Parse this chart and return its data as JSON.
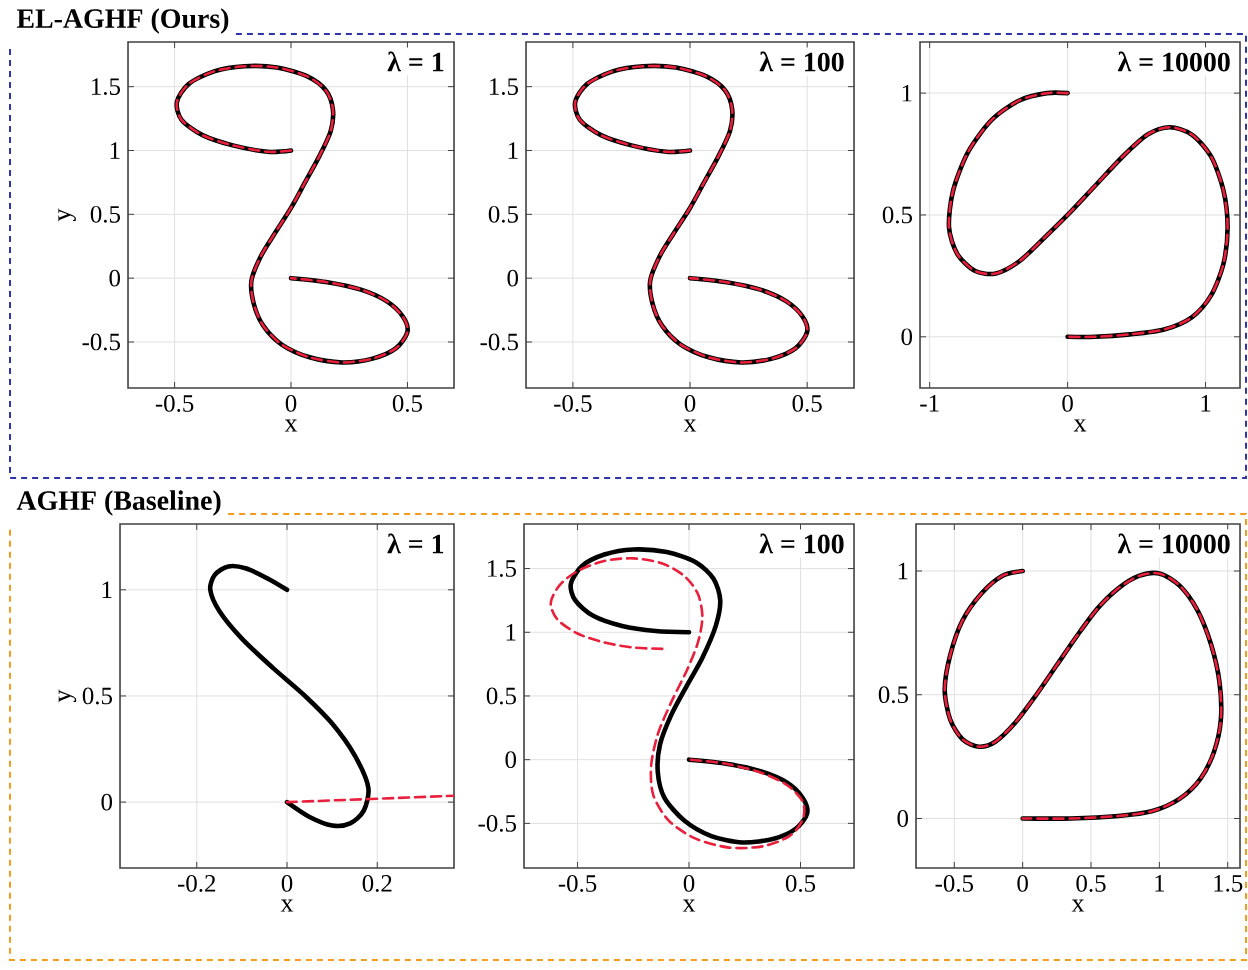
{
  "chart_data": [
    {
      "type": "line",
      "title": "λ = 1",
      "xlabel": "x",
      "ylabel": "y",
      "annotations": [
        "EL-AGHF (Ours)"
      ],
      "xlim": [
        -0.7,
        0.7
      ],
      "ylim": [
        -0.86,
        1.85
      ],
      "xticks": [
        -0.5,
        0,
        0.5
      ],
      "yticks": [
        -0.5,
        0,
        0.5,
        1,
        1.5
      ],
      "grid": true,
      "series": [
        {
          "color": "#000000",
          "line_style": "solid",
          "x": [
            0,
            -0.1,
            -0.25,
            -0.38,
            -0.47,
            -0.49,
            -0.44,
            -0.33,
            -0.2,
            -0.06,
            0.07,
            0.15,
            0.18,
            0.17,
            0.12,
            0.06,
            0.0,
            -0.07,
            -0.13,
            -0.17,
            -0.16,
            -0.12,
            -0.04,
            0.08,
            0.22,
            0.35,
            0.45,
            0.5,
            0.48,
            0.41,
            0.3,
            0.15,
            0
          ],
          "values": [
            1,
            0.99,
            1.04,
            1.12,
            1.24,
            1.38,
            1.52,
            1.62,
            1.66,
            1.65,
            1.58,
            1.47,
            1.32,
            1.15,
            0.95,
            0.75,
            0.55,
            0.35,
            0.17,
            -0.02,
            -0.2,
            -0.37,
            -0.52,
            -0.62,
            -0.66,
            -0.63,
            -0.55,
            -0.42,
            -0.3,
            -0.18,
            -0.09,
            -0.03,
            0
          ]
        },
        {
          "color": "#e8203c",
          "line_style": "dashed",
          "x": [
            0,
            -0.1,
            -0.25,
            -0.38,
            -0.47,
            -0.49,
            -0.44,
            -0.33,
            -0.2,
            -0.06,
            0.07,
            0.15,
            0.18,
            0.17,
            0.12,
            0.06,
            0.0,
            -0.07,
            -0.13,
            -0.17,
            -0.16,
            -0.12,
            -0.04,
            0.08,
            0.22,
            0.35,
            0.45,
            0.5,
            0.48,
            0.41,
            0.3,
            0.15,
            0
          ],
          "values": [
            1,
            0.99,
            1.04,
            1.12,
            1.24,
            1.38,
            1.52,
            1.62,
            1.66,
            1.65,
            1.58,
            1.47,
            1.32,
            1.15,
            0.95,
            0.75,
            0.55,
            0.35,
            0.17,
            -0.02,
            -0.2,
            -0.37,
            -0.52,
            -0.62,
            -0.66,
            -0.63,
            -0.55,
            -0.42,
            -0.3,
            -0.18,
            -0.09,
            -0.03,
            0
          ]
        }
      ]
    },
    {
      "type": "line",
      "title": "λ = 100",
      "xlabel": "x",
      "xlim": [
        -0.7,
        0.7
      ],
      "ylim": [
        -0.86,
        1.85
      ],
      "xticks": [
        -0.5,
        0,
        0.5
      ],
      "yticks": [
        -0.5,
        0,
        0.5,
        1,
        1.5
      ],
      "grid": true,
      "series": [
        {
          "color": "#000000",
          "line_style": "solid",
          "x": [
            0,
            -0.1,
            -0.25,
            -0.38,
            -0.47,
            -0.49,
            -0.44,
            -0.33,
            -0.2,
            -0.06,
            0.07,
            0.15,
            0.18,
            0.17,
            0.12,
            0.06,
            0.0,
            -0.07,
            -0.13,
            -0.17,
            -0.16,
            -0.12,
            -0.04,
            0.08,
            0.22,
            0.35,
            0.45,
            0.5,
            0.48,
            0.41,
            0.3,
            0.15,
            0
          ],
          "values": [
            1,
            0.99,
            1.04,
            1.12,
            1.24,
            1.38,
            1.52,
            1.62,
            1.66,
            1.65,
            1.58,
            1.47,
            1.32,
            1.15,
            0.95,
            0.75,
            0.55,
            0.35,
            0.17,
            -0.02,
            -0.2,
            -0.37,
            -0.52,
            -0.62,
            -0.66,
            -0.63,
            -0.55,
            -0.42,
            -0.3,
            -0.18,
            -0.09,
            -0.03,
            0
          ]
        },
        {
          "color": "#e8203c",
          "line_style": "dashed",
          "x": [
            0,
            -0.1,
            -0.25,
            -0.38,
            -0.47,
            -0.49,
            -0.44,
            -0.33,
            -0.2,
            -0.06,
            0.07,
            0.15,
            0.18,
            0.17,
            0.12,
            0.06,
            0.0,
            -0.07,
            -0.13,
            -0.17,
            -0.16,
            -0.12,
            -0.04,
            0.08,
            0.22,
            0.35,
            0.45,
            0.5,
            0.48,
            0.41,
            0.3,
            0.15,
            0
          ],
          "values": [
            1,
            0.99,
            1.04,
            1.12,
            1.24,
            1.38,
            1.52,
            1.62,
            1.66,
            1.65,
            1.58,
            1.47,
            1.32,
            1.15,
            0.95,
            0.75,
            0.55,
            0.35,
            0.17,
            -0.02,
            -0.2,
            -0.37,
            -0.52,
            -0.62,
            -0.66,
            -0.63,
            -0.55,
            -0.42,
            -0.3,
            -0.18,
            -0.09,
            -0.03,
            0
          ]
        }
      ]
    },
    {
      "type": "line",
      "title": "λ = 10000",
      "xlabel": "x",
      "xlim": [
        -1.07,
        1.25
      ],
      "ylim": [
        -0.21,
        1.21
      ],
      "xticks": [
        -1,
        0,
        1
      ],
      "yticks": [
        0,
        0.5,
        1
      ],
      "grid": true,
      "series": [
        {
          "color": "#000000",
          "line_style": "solid",
          "x": [
            0,
            -0.15,
            -0.35,
            -0.55,
            -0.72,
            -0.83,
            -0.86,
            -0.8,
            -0.67,
            -0.52,
            -0.35,
            -0.18,
            0,
            0.2,
            0.4,
            0.58,
            0.74,
            0.9,
            1.04,
            1.13,
            1.16,
            1.13,
            1.04,
            0.9,
            0.7,
            0.45,
            0.2,
            0
          ],
          "values": [
            1,
            1.0,
            0.97,
            0.89,
            0.76,
            0.6,
            0.45,
            0.34,
            0.27,
            0.26,
            0.31,
            0.4,
            0.5,
            0.62,
            0.74,
            0.83,
            0.86,
            0.83,
            0.74,
            0.6,
            0.45,
            0.3,
            0.17,
            0.08,
            0.03,
            0.01,
            0,
            0
          ]
        },
        {
          "color": "#e8203c",
          "line_style": "dashed",
          "x": [
            0,
            -0.15,
            -0.35,
            -0.55,
            -0.72,
            -0.83,
            -0.86,
            -0.8,
            -0.67,
            -0.52,
            -0.35,
            -0.18,
            0,
            0.2,
            0.4,
            0.58,
            0.74,
            0.9,
            1.04,
            1.13,
            1.16,
            1.13,
            1.04,
            0.9,
            0.7,
            0.45,
            0.2,
            0
          ],
          "values": [
            1,
            1.0,
            0.97,
            0.89,
            0.76,
            0.6,
            0.45,
            0.34,
            0.27,
            0.26,
            0.31,
            0.4,
            0.5,
            0.62,
            0.74,
            0.83,
            0.86,
            0.83,
            0.74,
            0.6,
            0.45,
            0.3,
            0.17,
            0.08,
            0.03,
            0.01,
            0,
            0
          ]
        }
      ]
    },
    {
      "type": "line",
      "title": "λ = 1",
      "xlabel": "x",
      "ylabel": "y",
      "annotations": [
        "AGHF (Baseline)"
      ],
      "xlim": [
        -0.37,
        0.37
      ],
      "ylim": [
        -0.31,
        1.31
      ],
      "xticks": [
        -0.2,
        0,
        0.2
      ],
      "yticks": [
        0,
        0.5,
        1
      ],
      "grid": true,
      "series": [
        {
          "color": "#000000",
          "line_style": "solid",
          "x": [
            0,
            -0.04,
            -0.09,
            -0.13,
            -0.16,
            -0.17,
            -0.15,
            -0.1,
            -0.03,
            0.04,
            0.1,
            0.15,
            0.18,
            0.17,
            0.14,
            0.1,
            0.05,
            0
          ],
          "values": [
            1,
            1.05,
            1.1,
            1.11,
            1.07,
            1.0,
            0.9,
            0.77,
            0.63,
            0.5,
            0.37,
            0.22,
            0.07,
            -0.04,
            -0.1,
            -0.11,
            -0.07,
            0
          ]
        },
        {
          "color": "#e8203c",
          "line_style": "dashed",
          "x": [
            0,
            0.37
          ],
          "values": [
            0,
            0.03
          ]
        }
      ]
    },
    {
      "type": "line",
      "title": "λ = 100",
      "xlabel": "x",
      "xlim": [
        -0.74,
        0.74
      ],
      "ylim": [
        -0.85,
        1.85
      ],
      "xticks": [
        -0.5,
        0,
        0.5
      ],
      "yticks": [
        -0.5,
        0,
        0.5,
        1,
        1.5
      ],
      "grid": true,
      "series": [
        {
          "color": "#000000",
          "line_style": "solid",
          "x": [
            0,
            -0.15,
            -0.3,
            -0.43,
            -0.51,
            -0.53,
            -0.48,
            -0.38,
            -0.25,
            -0.1,
            0.03,
            0.11,
            0.14,
            0.12,
            0.06,
            -0.01,
            -0.08,
            -0.13,
            -0.14,
            -0.11,
            -0.02,
            0.1,
            0.24,
            0.38,
            0.48,
            0.53,
            0.51,
            0.44,
            0.32,
            0.16,
            0
          ],
          "values": [
            1,
            1.01,
            1.05,
            1.13,
            1.25,
            1.38,
            1.52,
            1.61,
            1.65,
            1.63,
            1.55,
            1.42,
            1.25,
            1.05,
            0.8,
            0.58,
            0.35,
            0.12,
            -0.1,
            -0.3,
            -0.48,
            -0.6,
            -0.65,
            -0.62,
            -0.54,
            -0.42,
            -0.3,
            -0.18,
            -0.09,
            -0.03,
            0
          ]
        },
        {
          "color": "#e8203c",
          "line_style": "dashed",
          "x": [
            -0.12,
            -0.25,
            -0.38,
            -0.5,
            -0.59,
            -0.62,
            -0.58,
            -0.5,
            -0.38,
            -0.25,
            -0.12,
            -0.02,
            0.04,
            0.06,
            0.04,
            -0.01,
            -0.08,
            -0.14,
            -0.17,
            -0.16,
            -0.09,
            0.03,
            0.18,
            0.33,
            0.45,
            0.51,
            0.51,
            0.44,
            0.32,
            0.16,
            0
          ],
          "values": [
            0.87,
            0.88,
            0.92,
            0.99,
            1.1,
            1.23,
            1.37,
            1.48,
            1.56,
            1.58,
            1.54,
            1.44,
            1.3,
            1.12,
            0.92,
            0.7,
            0.45,
            0.2,
            -0.05,
            -0.28,
            -0.48,
            -0.62,
            -0.69,
            -0.68,
            -0.6,
            -0.47,
            -0.33,
            -0.2,
            -0.1,
            -0.03,
            0
          ]
        }
      ]
    },
    {
      "type": "line",
      "title": "λ = 10000",
      "xlabel": "x",
      "xlim": [
        -0.78,
        1.59
      ],
      "ylim": [
        -0.2,
        1.19
      ],
      "xticks": [
        -0.5,
        0,
        0.5,
        1,
        1.5
      ],
      "yticks": [
        0,
        0.5,
        1
      ],
      "grid": true,
      "series": [
        {
          "color": "#000000",
          "line_style": "solid",
          "x": [
            0,
            -0.15,
            -0.3,
            -0.44,
            -0.53,
            -0.57,
            -0.53,
            -0.44,
            -0.32,
            -0.2,
            -0.05,
            0.1,
            0.25,
            0.4,
            0.55,
            0.7,
            0.85,
            1.0,
            1.15,
            1.28,
            1.38,
            1.44,
            1.45,
            1.4,
            1.3,
            1.15,
            0.95,
            0.7,
            0.35,
            0
          ],
          "values": [
            1,
            0.98,
            0.91,
            0.8,
            0.66,
            0.52,
            0.4,
            0.32,
            0.29,
            0.31,
            0.39,
            0.5,
            0.62,
            0.74,
            0.85,
            0.93,
            0.98,
            0.99,
            0.94,
            0.84,
            0.7,
            0.55,
            0.4,
            0.27,
            0.16,
            0.08,
            0.03,
            0.01,
            0,
            0
          ]
        },
        {
          "color": "#e8203c",
          "line_style": "dashed",
          "x": [
            0,
            -0.15,
            -0.3,
            -0.44,
            -0.53,
            -0.57,
            -0.53,
            -0.44,
            -0.32,
            -0.2,
            -0.05,
            0.1,
            0.25,
            0.4,
            0.55,
            0.7,
            0.85,
            1.0,
            1.15,
            1.28,
            1.38,
            1.44,
            1.45,
            1.4,
            1.3,
            1.15,
            0.95,
            0.7,
            0.35,
            0
          ],
          "values": [
            1,
            0.98,
            0.91,
            0.8,
            0.66,
            0.52,
            0.4,
            0.32,
            0.29,
            0.31,
            0.39,
            0.5,
            0.62,
            0.74,
            0.85,
            0.93,
            0.98,
            0.99,
            0.94,
            0.84,
            0.7,
            0.55,
            0.4,
            0.27,
            0.16,
            0.08,
            0.03,
            0.01,
            0,
            0
          ]
        }
      ]
    }
  ]
}
